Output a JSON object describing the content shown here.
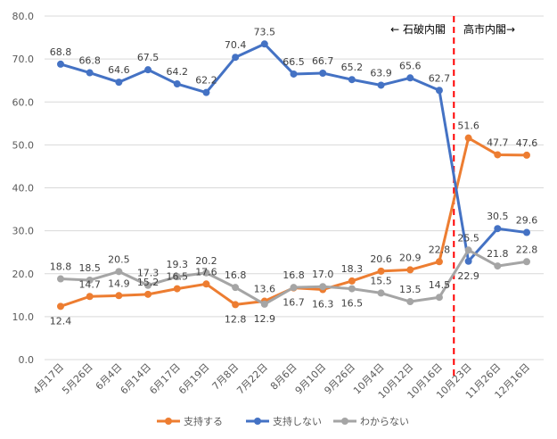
{
  "chart_data": {
    "type": "line",
    "categories": [
      "4月17日",
      "5月26日",
      "6月4日",
      "6月14日",
      "6月17日",
      "6月19日",
      "7月8日",
      "7月22日",
      "8月6日",
      "9月10日",
      "9月26日",
      "10月4日",
      "10月12日",
      "10月16日",
      "10月23日",
      "11月26日",
      "12月16日"
    ],
    "ylim": [
      0,
      80
    ],
    "yticks": [
      "0.0",
      "10.0",
      "20.0",
      "30.0",
      "40.0",
      "50.0",
      "60.0",
      "70.0",
      "80.0"
    ],
    "grid": true,
    "legend_placement": "bottom",
    "series": [
      {
        "name": "支持する",
        "color": "#ED7D31",
        "values": [
          12.4,
          14.7,
          14.9,
          15.2,
          16.5,
          17.6,
          12.8,
          13.6,
          16.7,
          16.3,
          18.3,
          20.6,
          20.9,
          22.8,
          51.6,
          47.7,
          47.6
        ]
      },
      {
        "name": "支持しない",
        "color": "#4472C4",
        "values": [
          68.8,
          66.8,
          64.6,
          67.5,
          64.2,
          62.2,
          70.4,
          73.5,
          66.5,
          66.7,
          65.2,
          63.9,
          65.6,
          62.7,
          22.9,
          30.5,
          29.6
        ]
      },
      {
        "name": "わからない",
        "color": "#A5A5A5",
        "values": [
          18.8,
          18.5,
          20.5,
          17.3,
          19.3,
          20.2,
          16.8,
          12.9,
          16.8,
          17.0,
          16.5,
          15.5,
          13.5,
          14.5,
          25.5,
          21.8,
          22.8
        ]
      }
    ],
    "annotations": {
      "left": "← 石破内閣",
      "right": "高市内閣→",
      "divider_color": "#FF0000"
    }
  }
}
